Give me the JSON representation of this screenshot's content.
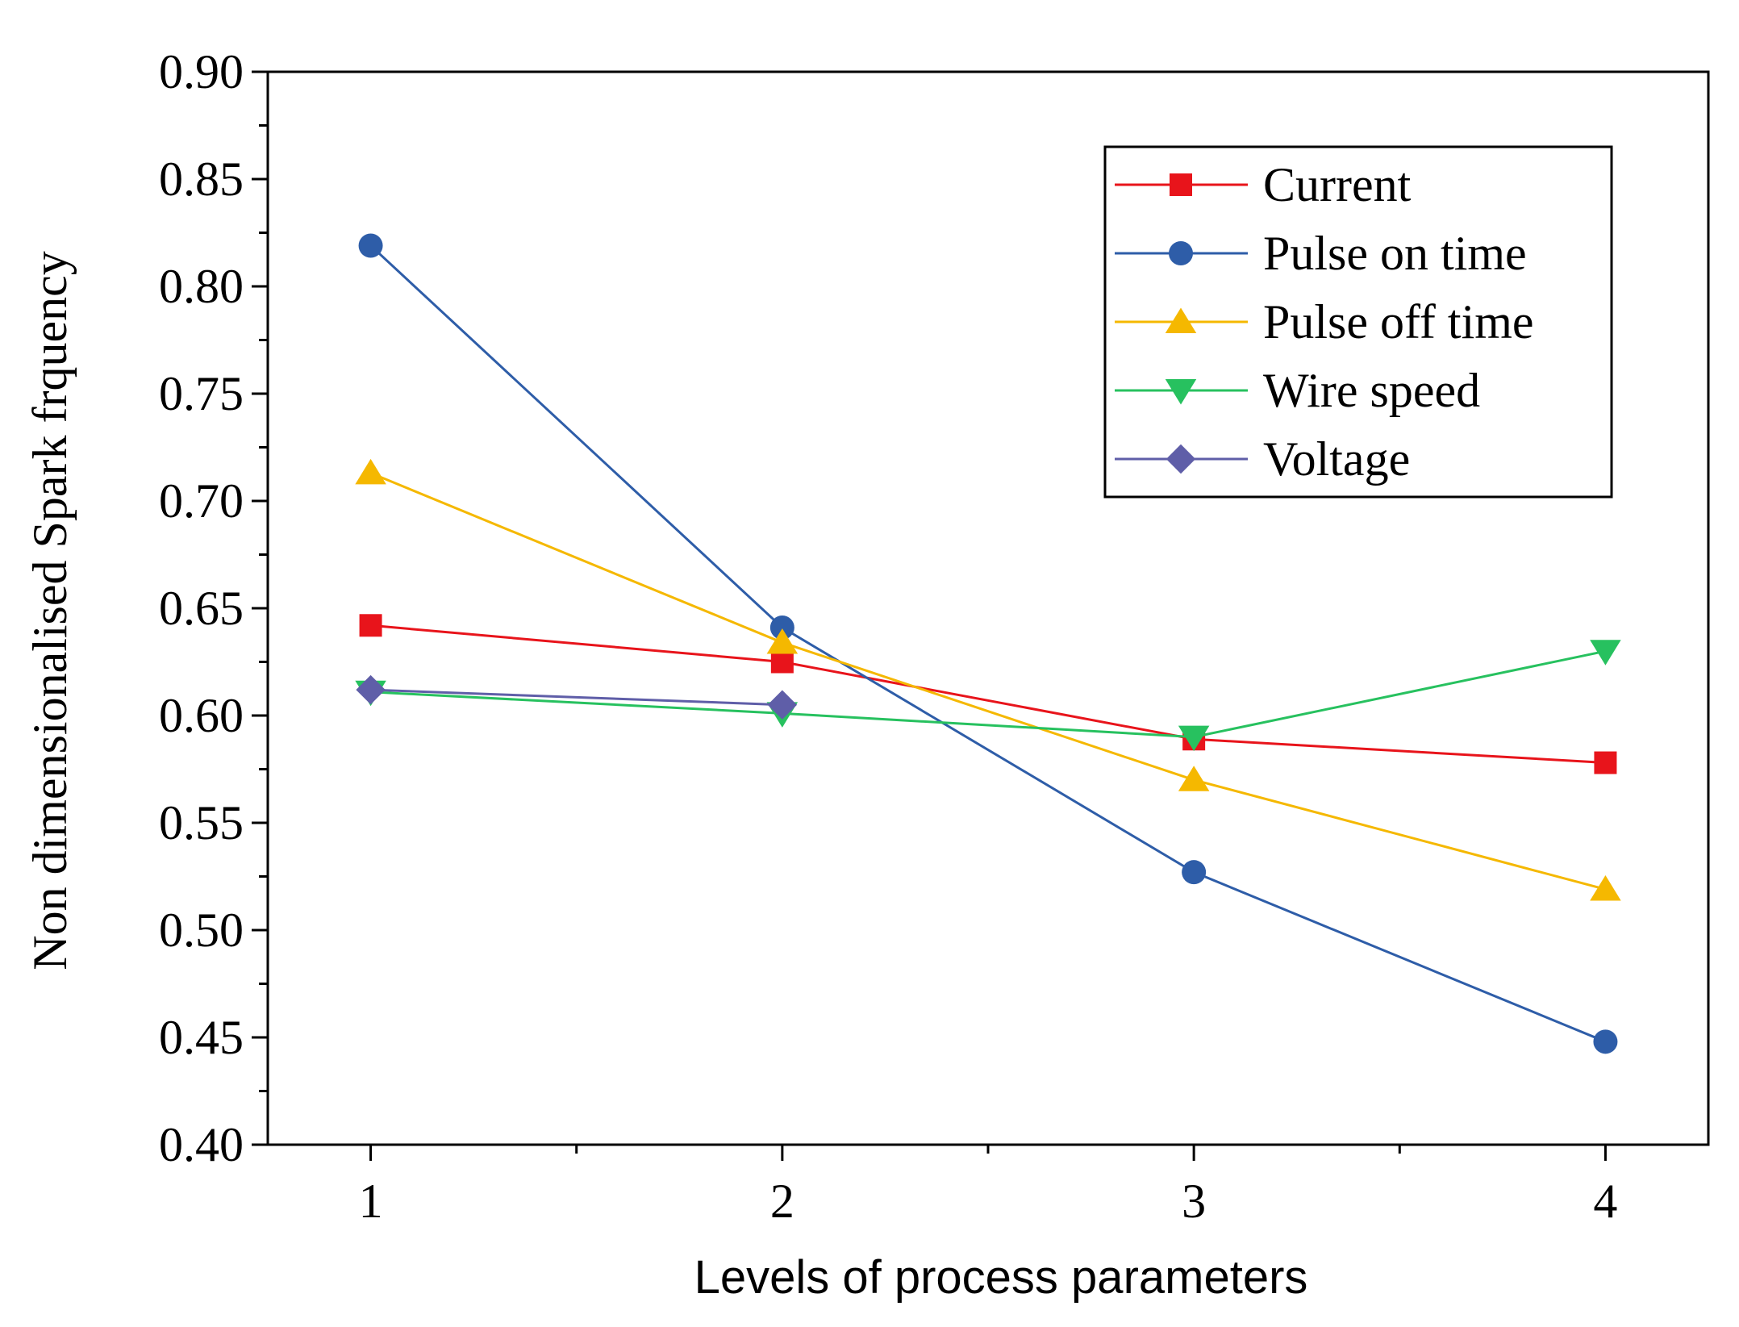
{
  "chart_data": {
    "type": "line",
    "xlabel": "Levels of process parameters",
    "ylabel": "Non dimensionalised Spark frquency",
    "x": [
      1,
      2,
      3,
      4
    ],
    "x_ticks": [
      "1",
      "2",
      "3",
      "4"
    ],
    "ylim": [
      0.4,
      0.9
    ],
    "y_ticks": [
      "0.40",
      "0.45",
      "0.50",
      "0.55",
      "0.60",
      "0.65",
      "0.70",
      "0.75",
      "0.80",
      "0.85",
      "0.90"
    ],
    "grid": false,
    "legend_position": "top-right",
    "series": [
      {
        "name": "Current",
        "color": "#e8141b",
        "marker": "square",
        "x": [
          1,
          2,
          3,
          4
        ],
        "values": [
          0.642,
          0.625,
          0.589,
          0.578
        ]
      },
      {
        "name": "Pulse on time",
        "color": "#2e5da8",
        "marker": "circle",
        "x": [
          1,
          2,
          3,
          4
        ],
        "values": [
          0.819,
          0.641,
          0.527,
          0.448
        ]
      },
      {
        "name": "Pulse off time",
        "color": "#f5b800",
        "marker": "triangle-up",
        "x": [
          1,
          2,
          3,
          4
        ],
        "values": [
          0.713,
          0.634,
          0.57,
          0.519
        ]
      },
      {
        "name": "Wire speed",
        "color": "#27c15f",
        "marker": "triangle-down",
        "x": [
          1,
          2,
          3,
          4
        ],
        "values": [
          0.611,
          0.601,
          0.59,
          0.63
        ]
      },
      {
        "name": "Voltage",
        "color": "#5f5ea8",
        "marker": "diamond",
        "x": [
          1,
          2
        ],
        "values": [
          0.612,
          0.605
        ]
      }
    ]
  }
}
